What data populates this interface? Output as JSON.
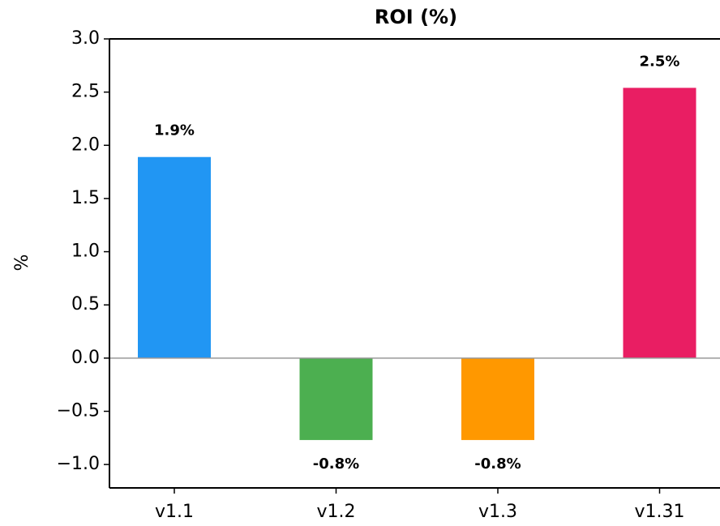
{
  "chart_data": {
    "type": "bar",
    "title": "ROI (%)",
    "y_label": "%",
    "categories": [
      "v1.1",
      "v1.2",
      "v1.3",
      "v1.31"
    ],
    "values": [
      1.89,
      -0.77,
      -0.77,
      2.54
    ],
    "value_labels": [
      "1.9%",
      "-0.8%",
      "-0.8%",
      "2.5%"
    ],
    "colors": [
      "#2196f3",
      "#4caf50",
      "#ff9800",
      "#e91e63"
    ],
    "ylim": [
      -1.22,
      3.0
    ],
    "yticks": [
      {
        "value": -1.0,
        "label": "−1.0"
      },
      {
        "value": -0.5,
        "label": "−0.5"
      },
      {
        "value": 0.0,
        "label": "0.0"
      },
      {
        "value": 0.5,
        "label": "0.5"
      },
      {
        "value": 1.0,
        "label": "1.0"
      },
      {
        "value": 1.5,
        "label": "1.5"
      },
      {
        "value": 2.0,
        "label": "2.0"
      },
      {
        "value": 2.5,
        "label": "2.5"
      },
      {
        "value": 3.0,
        "label": "3.0"
      }
    ]
  }
}
